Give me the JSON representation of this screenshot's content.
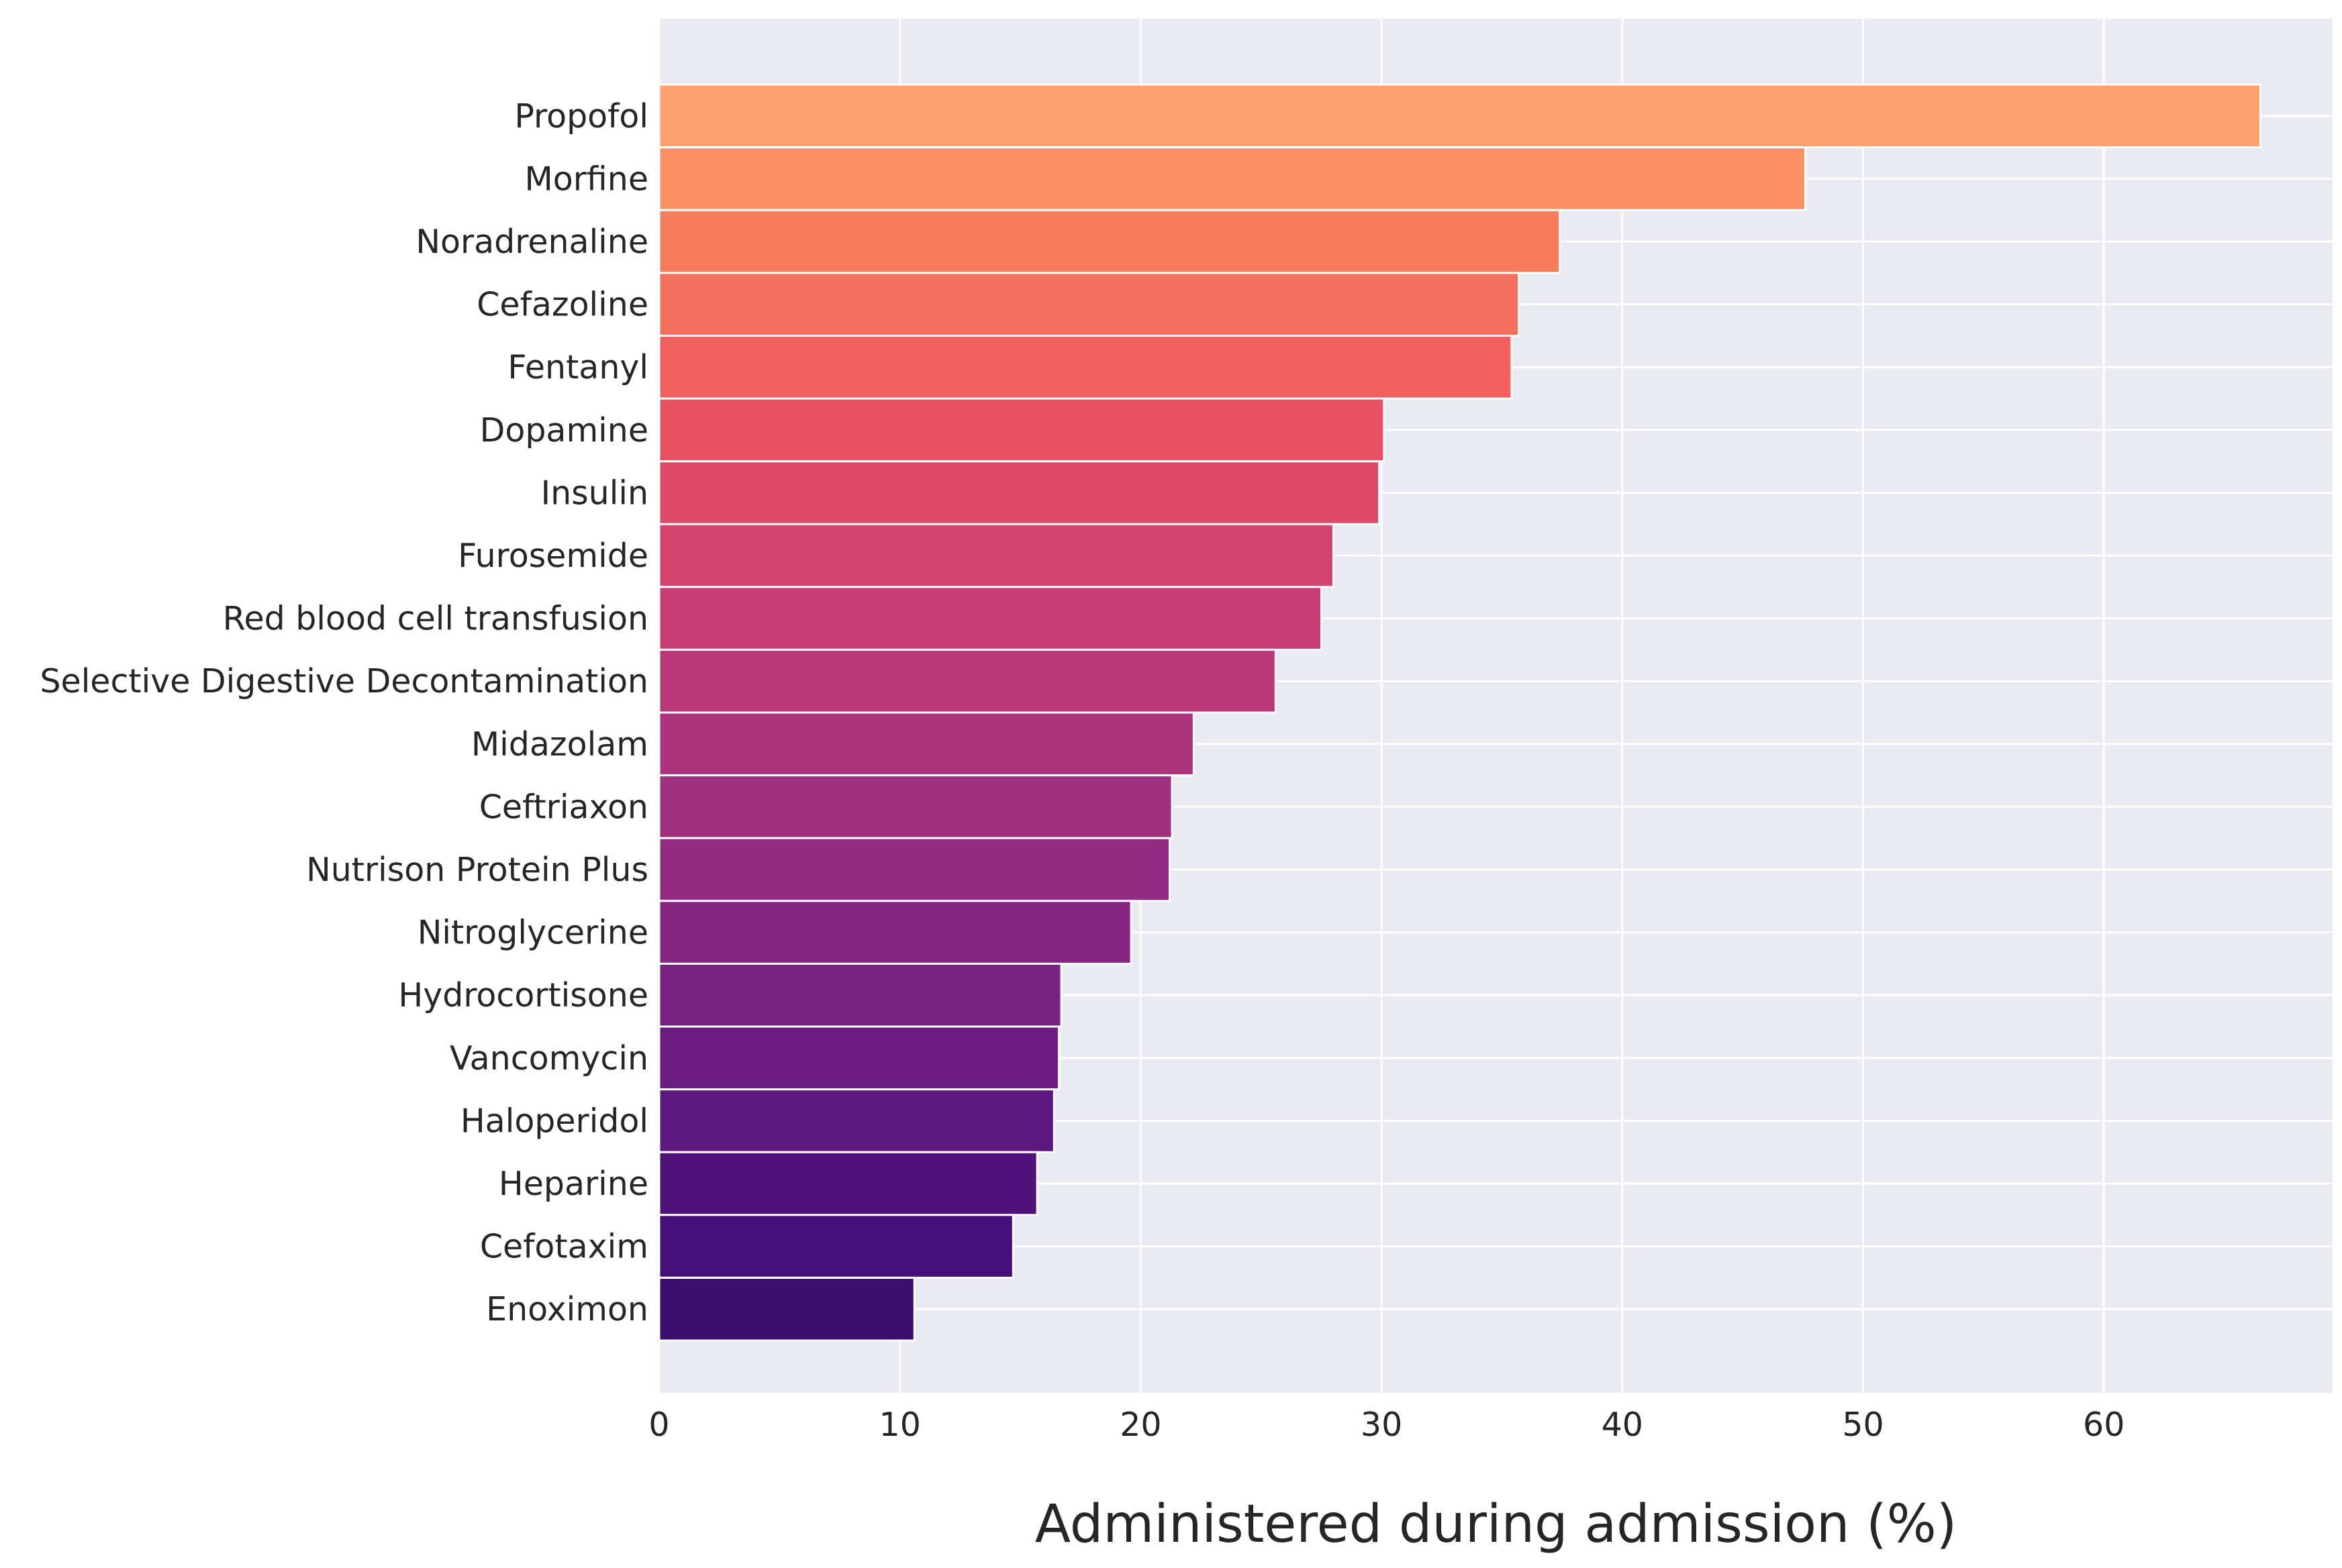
{
  "chart_data": {
    "type": "bar",
    "orientation": "horizontal",
    "title": "",
    "xlabel": "Administered during admission (%)",
    "ylabel": "",
    "xlim": [
      0,
      69.5
    ],
    "xticks": [
      0,
      10,
      20,
      30,
      40,
      50,
      60
    ],
    "grid": true,
    "background": "#EAEAF2",
    "grid_color": "#FFFFFF",
    "colormap": "magma",
    "categories": [
      "Propofol",
      "Morfine",
      "Noradrenaline",
      "Cefazoline",
      "Fentanyl",
      "Dopamine",
      "Insulin",
      "Furosemide",
      "Red blood cell transfusion",
      "Selective Digestive Decontamination",
      "Midazolam",
      "Ceftriaxon",
      "Nutrison Protein Plus",
      "Nitroglycerine",
      "Hydrocortisone",
      "Vancomycin",
      "Haloperidol",
      "Heparine",
      "Cefotaxim",
      "Enoximon"
    ],
    "values": [
      66.5,
      47.6,
      37.4,
      35.7,
      35.4,
      30.1,
      29.9,
      28.0,
      27.5,
      25.6,
      22.2,
      21.3,
      21.2,
      19.6,
      16.7,
      16.6,
      16.4,
      15.7,
      14.7,
      10.6
    ],
    "colors": [
      "#FEA16E",
      "#FC9065",
      "#F87D5D",
      "#F4705C",
      "#F0605D",
      "#E75263",
      "#DE4968",
      "#D3436E",
      "#C73D73",
      "#BA3878",
      "#AC337C",
      "#9F2F7F",
      "#922B81",
      "#842681",
      "#772181",
      "#6A1C81",
      "#5E177F",
      "#51127C",
      "#440F76",
      "#3A0F6E"
    ]
  }
}
